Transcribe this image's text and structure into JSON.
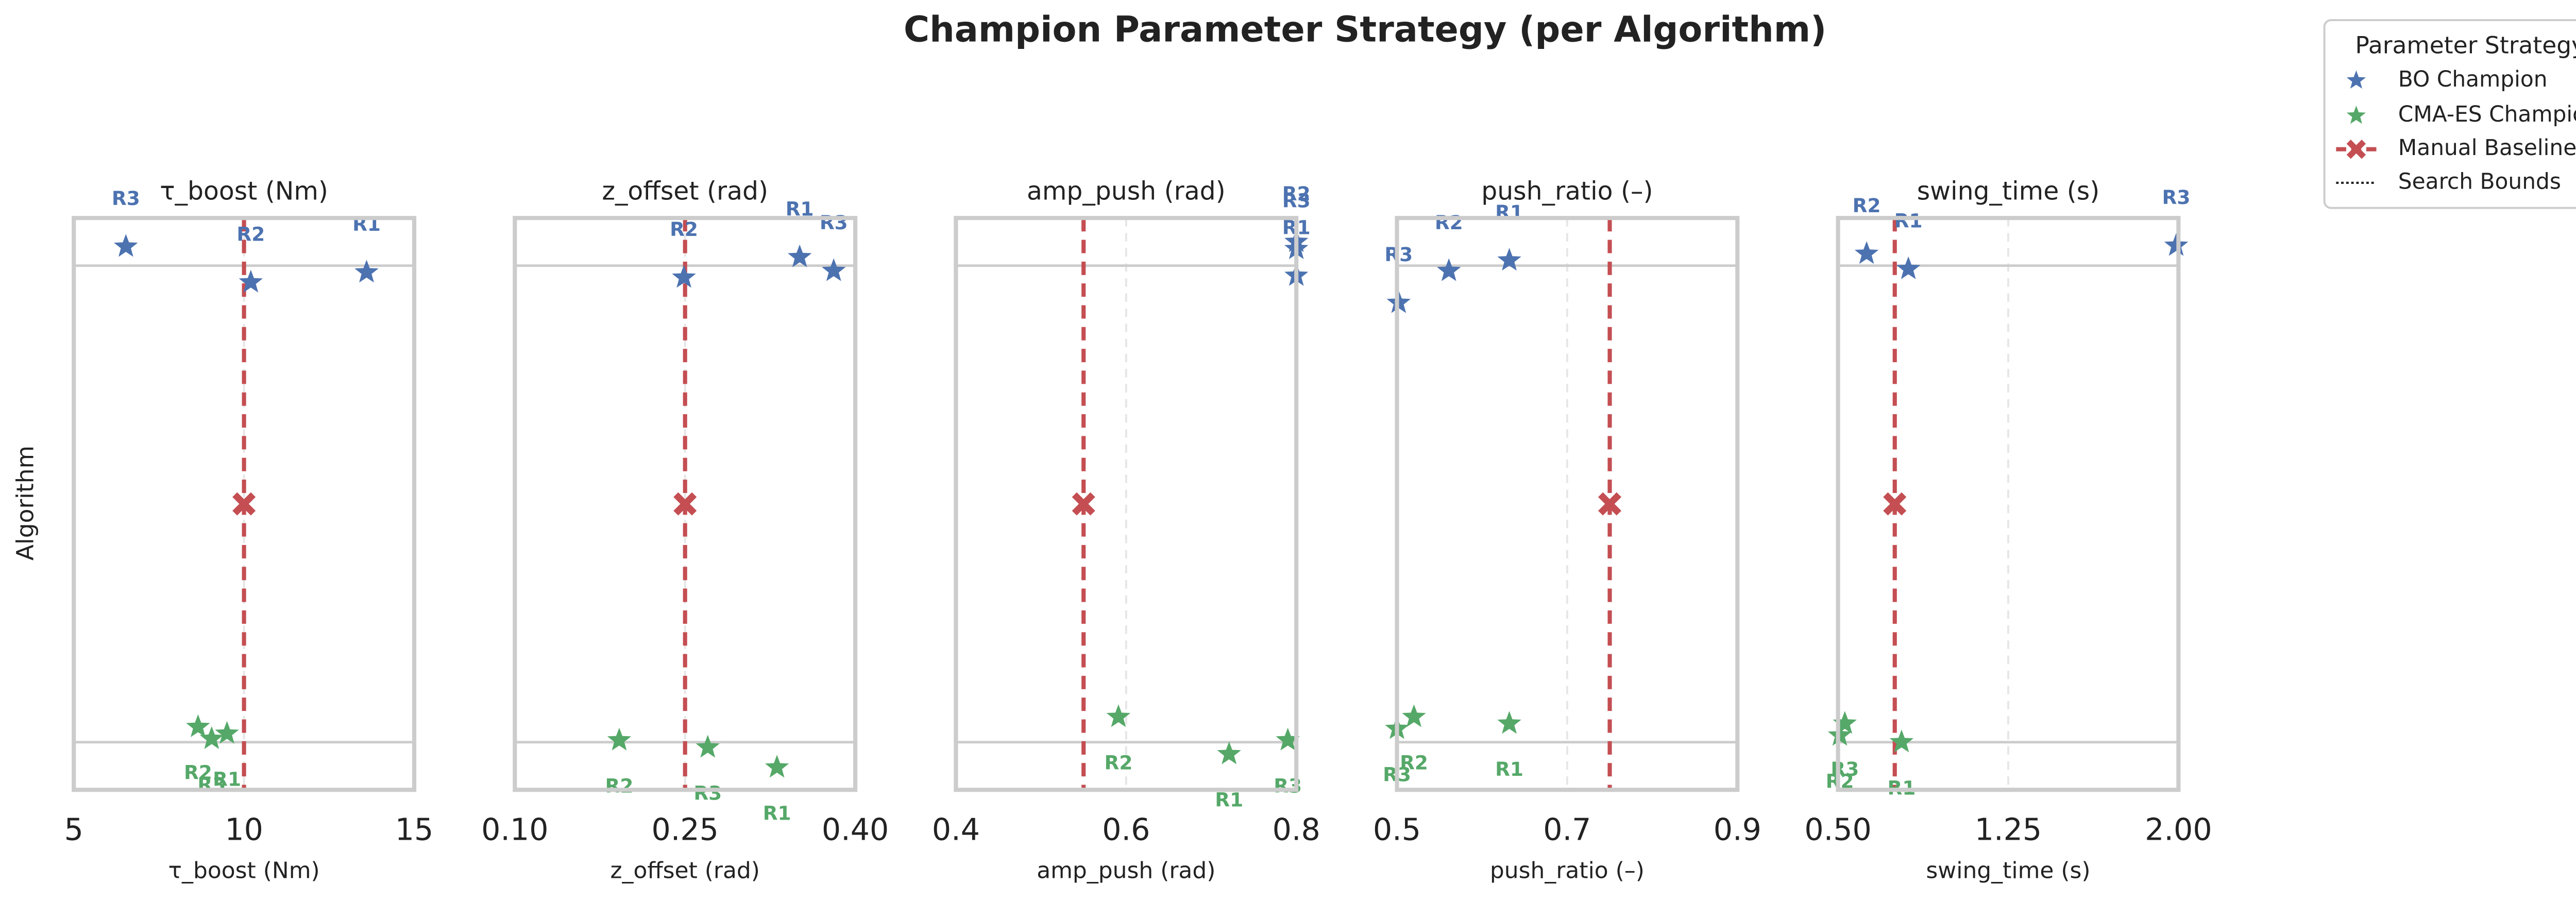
{
  "title": "Champion Parameter Strategy (per Algorithm)",
  "ylabel": "Algorithm",
  "legend": {
    "title": "Parameter Strategy",
    "loc": "upper right",
    "bounds_label": "Search Bounds"
  },
  "chart_data": [
    {
      "type": "scatter",
      "title": "τ_boost (Nm)",
      "xlabel": "τ_boost (Nm)",
      "xlim": [
        5,
        15
      ],
      "xticks": [
        5,
        10,
        15
      ],
      "ylim": [
        -0.1,
        1.1
      ],
      "yticks": [
        0,
        1
      ],
      "grid": true,
      "series": [
        {
          "name": "BO Champion",
          "color": "#4c72b0",
          "point_labels": [
            "R1",
            "R2",
            "R3"
          ],
          "x": [
            13.6,
            10.2,
            6.53
          ],
          "y": [
            0.014,
            0.035,
            -0.04
          ]
        },
        {
          "name": "CMA-ES Champion",
          "color": "#55a868",
          "point_labels": [
            "R1",
            "R2",
            "R3"
          ],
          "x": [
            9.5,
            8.65,
            9.05
          ],
          "y": [
            0.982,
            0.968,
            0.993
          ]
        }
      ],
      "baseline": {
        "name": "Manual Baseline",
        "color": "#c44e52",
        "value": 10
      }
    },
    {
      "type": "scatter",
      "title": "z_offset (rad)",
      "xlabel": "z_offset (rad)",
      "xlim": [
        0.1,
        0.4
      ],
      "xticks": [
        {
          "value": 0.1,
          "label": "0.10"
        },
        0.25,
        {
          "value": 0.4,
          "label": "0.40"
        }
      ],
      "ylim": [
        -0.1,
        1.1
      ],
      "yticks": [
        0,
        1
      ],
      "grid": true,
      "series": [
        {
          "name": "BO Champion",
          "color": "#4c72b0",
          "point_labels": [
            "R1",
            "R2",
            "R3"
          ],
          "x": [
            0.351,
            0.249,
            0.381
          ],
          "y": [
            -0.018,
            0.025,
            0.011
          ]
        },
        {
          "name": "CMA-ES Champion",
          "color": "#55a868",
          "point_labels": [
            "R1",
            "R2",
            "R3"
          ],
          "x": [
            0.331,
            0.192,
            0.27
          ],
          "y": [
            1.053,
            0.996,
            1.011
          ]
        }
      ],
      "baseline": {
        "name": "Manual Baseline",
        "color": "#c44e52",
        "value": 0.25
      }
    },
    {
      "type": "scatter",
      "title": "amp_push (rad)",
      "xlabel": "amp_push (rad)",
      "xlim": [
        0.4,
        0.8
      ],
      "xticks": [
        0.4,
        0.6,
        0.8
      ],
      "ylim": [
        -0.1,
        1.1
      ],
      "yticks": [
        0,
        1
      ],
      "grid": true,
      "series": [
        {
          "name": "BO Champion",
          "color": "#4c72b0",
          "point_labels": [
            "R1",
            "R2",
            "R3"
          ],
          "x": [
            0.8,
            0.8,
            0.8
          ],
          "y": [
            0.021,
            -0.05,
            -0.035
          ]
        },
        {
          "name": "CMA-ES Champion",
          "color": "#55a868",
          "point_labels": [
            "R1",
            "R2",
            "R3"
          ],
          "x": [
            0.721,
            0.591,
            0.79
          ],
          "y": [
            1.025,
            0.947,
            0.996
          ]
        }
      ],
      "baseline": {
        "name": "Manual Baseline",
        "color": "#c44e52",
        "value": 0.55
      }
    },
    {
      "type": "scatter",
      "title": "push_ratio (–)",
      "xlabel": "push_ratio (–)",
      "xlim": [
        0.5,
        0.9
      ],
      "xticks": [
        0.5,
        0.7,
        0.9
      ],
      "ylim": [
        -0.1,
        1.1
      ],
      "yticks": [
        0,
        1
      ],
      "grid": true,
      "series": [
        {
          "name": "BO Champion",
          "color": "#4c72b0",
          "point_labels": [
            "R1",
            "R2",
            "R3"
          ],
          "x": [
            0.632,
            0.561,
            0.502
          ],
          "y": [
            -0.011,
            0.011,
            0.078
          ]
        },
        {
          "name": "CMA-ES Champion",
          "color": "#55a868",
          "point_labels": [
            "R1",
            "R2",
            "R3"
          ],
          "x": [
            0.632,
            0.52,
            0.5
          ],
          "y": [
            0.961,
            0.947,
            0.972
          ]
        }
      ],
      "baseline": {
        "name": "Manual Baseline",
        "color": "#c44e52",
        "value": 0.75
      }
    },
    {
      "type": "scatter",
      "title": "swing_time (s)",
      "xlabel": "swing_time (s)",
      "xlim": [
        0.5,
        2.0
      ],
      "xticks": [
        {
          "value": 0.5,
          "label": "0.50"
        },
        1.25,
        {
          "value": 2.0,
          "label": "2.00"
        }
      ],
      "ylim": [
        -0.1,
        1.1
      ],
      "yticks": [
        0,
        1
      ],
      "grid": true,
      "series": [
        {
          "name": "BO Champion",
          "color": "#4c72b0",
          "point_labels": [
            "R1",
            "R2",
            "R3"
          ],
          "x": [
            0.81,
            0.626,
            1.99
          ],
          "y": [
            0.007,
            -0.025,
            -0.042
          ]
        },
        {
          "name": "CMA-ES Champion",
          "color": "#55a868",
          "point_labels": [
            "R1",
            "R2",
            "R3"
          ],
          "x": [
            0.78,
            0.508,
            0.53
          ],
          "y": [
            1.0,
            0.986,
            0.961
          ]
        }
      ],
      "baseline": {
        "name": "Manual Baseline",
        "color": "#c44e52",
        "value": 0.75
      }
    }
  ]
}
